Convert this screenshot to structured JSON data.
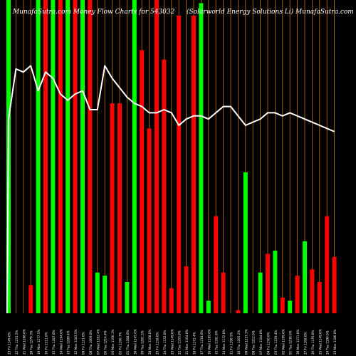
{
  "chart_data": {
    "type": "bar",
    "title_left": "MunafaSutra.com Money Flow Charts for 543032",
    "title_right": "(Solarworld Energy Solutions Li) MunafaSutra.com",
    "colors": {
      "background": "#000000",
      "up": "#00ff00",
      "down": "#ff0000",
      "gridline": "#c07000",
      "line": "#ffffff",
      "label": "#ffffff"
    },
    "categories": [
      "23 Fri 1149.0%",
      "22 Thu 1231.5%",
      "21 Wed 1288.0%",
      "20 Tue 1279.3%",
      "19 Mon 1277.5%",
      "16 Fri 1311.6%",
      "15 Thu 1287.0%",
      "14 Wed 1194.0%",
      "13 Tue 1209.4%",
      "12 Mon 1183.5%",
      "09 Fri 1121.0%",
      "08 Thu 1069.0%",
      "07 Wed 1202.4%",
      "06 Tue 1214.4%",
      "05 Mon 1166.1%",
      "02 Fri 1196.7%",
      "01 Thu 1288.0%",
      "30 Wed 1245.6%",
      "29 Tue 1201.5%",
      "28 Mon 1168.0%",
      "25 Fri 1158.0%",
      "24 Thu 1132.0%",
      "23 Wed 1149.0%",
      "22 Tue 1153.8%",
      "21 Mon 1164.0%",
      "18 Fri 1172.4%",
      "17 Thu 1218.0%",
      "16 Wed 1185.0%",
      "15 Tue 1191.8%",
      "14 Mon 1172.0%",
      "11 Fri 1190.5%",
      "10 Thu 1205.2%",
      "09 Wed 1237.3%",
      "08 Tue 1212.0%",
      "07 Mon 1184.0%",
      "04 Fri 1150.6%",
      "03 Thu 1229.4%",
      "02 Wed 1199.0%",
      "01 Tue 1236.0%",
      "30 Mon 1151.0%",
      "27 Fri 1168.0%",
      "26 Thu 1176.0%",
      "25 Wed 1149.0%",
      "24 Tue 1196.0%",
      "23 Mon 1186.0%"
    ],
    "series": [
      {
        "values": [
          100,
          0,
          0,
          9,
          100,
          100,
          100,
          100,
          100,
          100,
          100,
          100,
          13,
          12,
          67,
          67,
          10,
          100,
          84,
          59,
          100,
          81,
          8,
          95,
          15,
          95,
          99,
          4,
          31,
          13,
          0,
          1,
          45,
          0,
          13,
          19,
          20,
          5,
          4,
          12,
          23,
          14,
          10,
          31,
          18
        ],
        "direction": [
          "up",
          "down",
          "up",
          "down",
          "up",
          "down",
          "up",
          "down",
          "up",
          "down",
          "up",
          "down",
          "up",
          "up",
          "down",
          "down",
          "up",
          "up",
          "down",
          "down",
          "down",
          "down",
          "down",
          "down",
          "down",
          "down",
          "up",
          "up",
          "down",
          "down",
          "up",
          "down",
          "up",
          "down",
          "up",
          "down",
          "up",
          "down",
          "up",
          "down",
          "up",
          "down",
          "down",
          "down",
          "down"
        ]
      },
      {
        "line_values": [
          62,
          78,
          77,
          79,
          71,
          77,
          75,
          70,
          68,
          70,
          71,
          65,
          65,
          79,
          75,
          72,
          69,
          67,
          66,
          64,
          64,
          65,
          64,
          60,
          62,
          63,
          63,
          62,
          64,
          66,
          66,
          63,
          60,
          61,
          62,
          64,
          64,
          63,
          64,
          63,
          62,
          61,
          60,
          59,
          58
        ]
      }
    ],
    "ylim": [
      0,
      100
    ]
  }
}
